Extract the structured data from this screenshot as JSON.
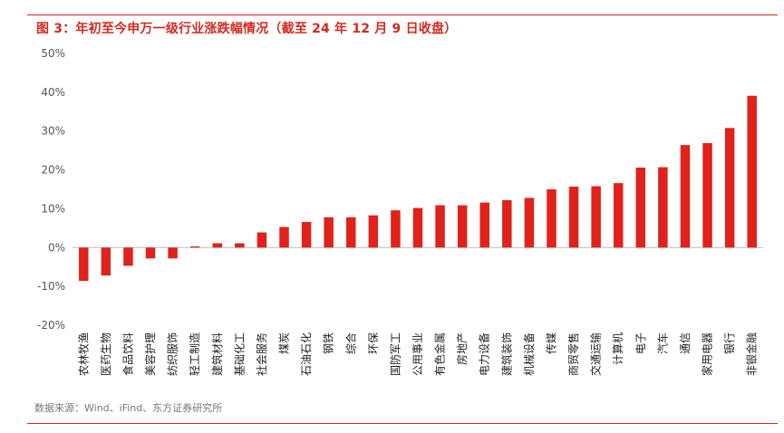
{
  "figure": {
    "title": "图 3：年初至今申万一级行业涨跌幅情况（截至 24 年 12 月 9 日收盘）",
    "source": "数据来源：Wind、iFind、东方证券研究所"
  },
  "chart_data": {
    "type": "bar",
    "title": "图 3：年初至今申万一级行业涨跌幅情况（截至 24 年 12 月 9 日收盘）",
    "xlabel": "",
    "ylabel": "",
    "ylim": [
      -20,
      50
    ],
    "yticks": [
      -20,
      -10,
      0,
      10,
      20,
      30,
      40,
      50
    ],
    "ytick_labels": [
      "-20%",
      "-10%",
      "0%",
      "10%",
      "20%",
      "30%",
      "40%",
      "50%"
    ],
    "grid": false,
    "legend": "none",
    "bar_color": "#e0221b",
    "categories": [
      "农林牧渔",
      "医药生物",
      "食品饮料",
      "美容护理",
      "纺织服饰",
      "轻工制造",
      "建筑材料",
      "基础化工",
      "社会服务",
      "煤炭",
      "石油石化",
      "钢铁",
      "综合",
      "环保",
      "国防军工",
      "公用事业",
      "有色金属",
      "房地产",
      "电力设备",
      "建筑装饰",
      "机械设备",
      "传媒",
      "商贸零售",
      "交通运输",
      "计算机",
      "电子",
      "汽车",
      "通信",
      "家用电器",
      "银行",
      "非银金融"
    ],
    "values": [
      -8.6,
      -7.2,
      -4.7,
      -2.8,
      -2.8,
      0.3,
      1.1,
      1.1,
      3.9,
      5.3,
      6.6,
      7.8,
      7.8,
      8.3,
      9.6,
      10.2,
      10.9,
      10.9,
      11.6,
      12.2,
      12.8,
      15.0,
      15.7,
      15.8,
      16.6,
      20.6,
      20.7,
      26.4,
      26.9,
      30.8,
      39.1
    ]
  }
}
